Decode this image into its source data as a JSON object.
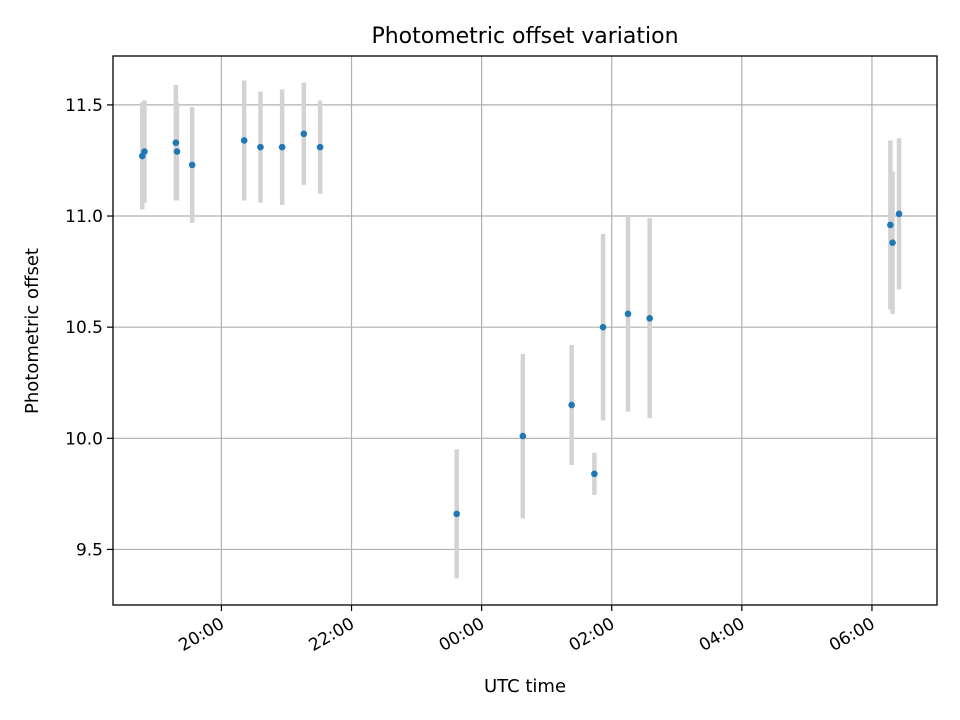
{
  "chart_data": {
    "type": "scatter",
    "title": "Photometric offset variation",
    "xlabel": "UTC time",
    "ylabel": "Photometric offset",
    "xlim": [
      "2024-01-01 18:20",
      "2024-01-02 07:00"
    ],
    "ylim": [
      9.25,
      11.72
    ],
    "grid": true,
    "x_ticks": [
      {
        "value": "2024-01-01 20:00",
        "label": "20:00"
      },
      {
        "value": "2024-01-01 22:00",
        "label": "22:00"
      },
      {
        "value": "2024-01-02 00:00",
        "label": "00:00"
      },
      {
        "value": "2024-01-02 02:00",
        "label": "02:00"
      },
      {
        "value": "2024-01-02 04:00",
        "label": "04:00"
      },
      {
        "value": "2024-01-02 06:00",
        "label": "06:00"
      }
    ],
    "y_ticks": [
      9.5,
      10.0,
      10.5,
      11.0,
      11.5
    ],
    "point_color": "#1f77b4",
    "errorbar_color": "#d3d3d3",
    "points": [
      {
        "x": "2024-01-01 18:47",
        "y": 11.27,
        "err": 0.24
      },
      {
        "x": "2024-01-01 18:49",
        "y": 11.29,
        "err": 0.23
      },
      {
        "x": "2024-01-01 19:18",
        "y": 11.33,
        "err": 0.26
      },
      {
        "x": "2024-01-01 19:19",
        "y": 11.29,
        "err": 0.22
      },
      {
        "x": "2024-01-01 19:33",
        "y": 11.23,
        "err": 0.26
      },
      {
        "x": "2024-01-01 20:21",
        "y": 11.34,
        "err": 0.27
      },
      {
        "x": "2024-01-01 20:36",
        "y": 11.31,
        "err": 0.25
      },
      {
        "x": "2024-01-01 20:56",
        "y": 11.31,
        "err": 0.26
      },
      {
        "x": "2024-01-01 21:16",
        "y": 11.37,
        "err": 0.23
      },
      {
        "x": "2024-01-01 21:31",
        "y": 11.31,
        "err": 0.21
      },
      {
        "x": "2024-01-01 23:37",
        "y": 9.66,
        "err": 0.29
      },
      {
        "x": "2024-01-02 00:38",
        "y": 10.01,
        "err": 0.37
      },
      {
        "x": "2024-01-02 01:23",
        "y": 10.15,
        "err": 0.27
      },
      {
        "x": "2024-01-02 01:44",
        "y": 9.84,
        "err": 0.095
      },
      {
        "x": "2024-01-02 01:52",
        "y": 10.5,
        "err": 0.42
      },
      {
        "x": "2024-01-02 02:15",
        "y": 10.56,
        "err": 0.44
      },
      {
        "x": "2024-01-02 02:35",
        "y": 10.54,
        "err": 0.45
      },
      {
        "x": "2024-01-02 06:17",
        "y": 10.96,
        "err": 0.38
      },
      {
        "x": "2024-01-02 06:19",
        "y": 10.88,
        "err": 0.32
      },
      {
        "x": "2024-01-02 06:25",
        "y": 11.01,
        "err": 0.34
      }
    ]
  }
}
